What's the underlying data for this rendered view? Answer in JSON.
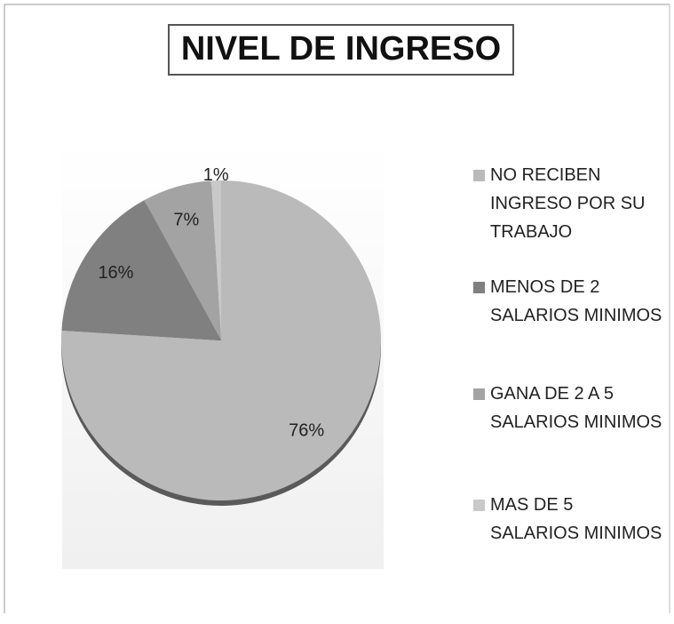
{
  "chart_data": {
    "type": "pie",
    "title": "NIVEL DE INGRESO",
    "categories": [
      "NO RECIBEN INGRESO POR SU TRABAJO",
      "MENOS DE 2 SALARIOS MINIMOS",
      "GANA DE 2 A 5 SALARIOS MINIMOS",
      "MAS DE 5 SALARIOS MINIMOS"
    ],
    "values": [
      76,
      16,
      7,
      1
    ],
    "value_labels": [
      "76%",
      "16%",
      "7%",
      "1%"
    ],
    "colors": [
      "#bababa",
      "#808080",
      "#a3a3a3",
      "#c9c9c9"
    ],
    "legend": "right"
  }
}
